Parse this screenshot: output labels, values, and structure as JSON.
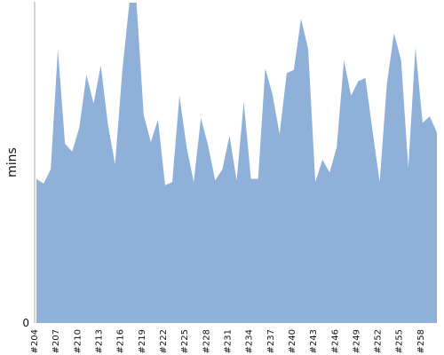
{
  "chart_data": {
    "type": "area",
    "title": "",
    "xlabel": "",
    "ylabel": "mins",
    "ylim": [
      0,
      100
    ],
    "x_start": 204,
    "x_end": 260,
    "x_tick_labels": [
      "#204",
      "#207",
      "#210",
      "#213",
      "#216",
      "#219",
      "#222",
      "#225",
      "#228",
      "#231",
      "#234",
      "#237",
      "#240",
      "#243",
      "#246",
      "#249",
      "#252",
      "#255",
      "#258"
    ],
    "y_tick_labels": [
      "0"
    ],
    "series": [
      {
        "name": "",
        "color": "#8fb1d9",
        "x": [
          204,
          205,
          206,
          207,
          208,
          209,
          210,
          211,
          212,
          213,
          214,
          215,
          216,
          217,
          218,
          219,
          220,
          221,
          222,
          223,
          224,
          225,
          226,
          227,
          228,
          229,
          230,
          231,
          232,
          233,
          234,
          235,
          236,
          237,
          238,
          239,
          240,
          241,
          242,
          243,
          244,
          245,
          246,
          247,
          248,
          249,
          250,
          251,
          252,
          253,
          254,
          255,
          256,
          257,
          258,
          259,
          260
        ],
        "values": [
          45,
          43.5,
          48,
          85.5,
          56,
          53.5,
          61,
          77.5,
          68.5,
          80.5,
          62,
          49.5,
          78.5,
          100,
          100,
          65,
          56.5,
          63.5,
          43,
          44,
          71,
          55,
          44,
          64,
          55.5,
          44.5,
          48,
          58.5,
          44.5,
          69,
          45,
          45,
          79.5,
          71.5,
          59,
          78,
          79,
          95,
          85.5,
          44,
          51,
          47,
          55,
          82,
          71,
          75.5,
          76.5,
          60,
          44,
          74.5,
          90.5,
          82,
          48.5,
          86,
          62.5,
          64.5,
          59.5
        ]
      }
    ]
  }
}
